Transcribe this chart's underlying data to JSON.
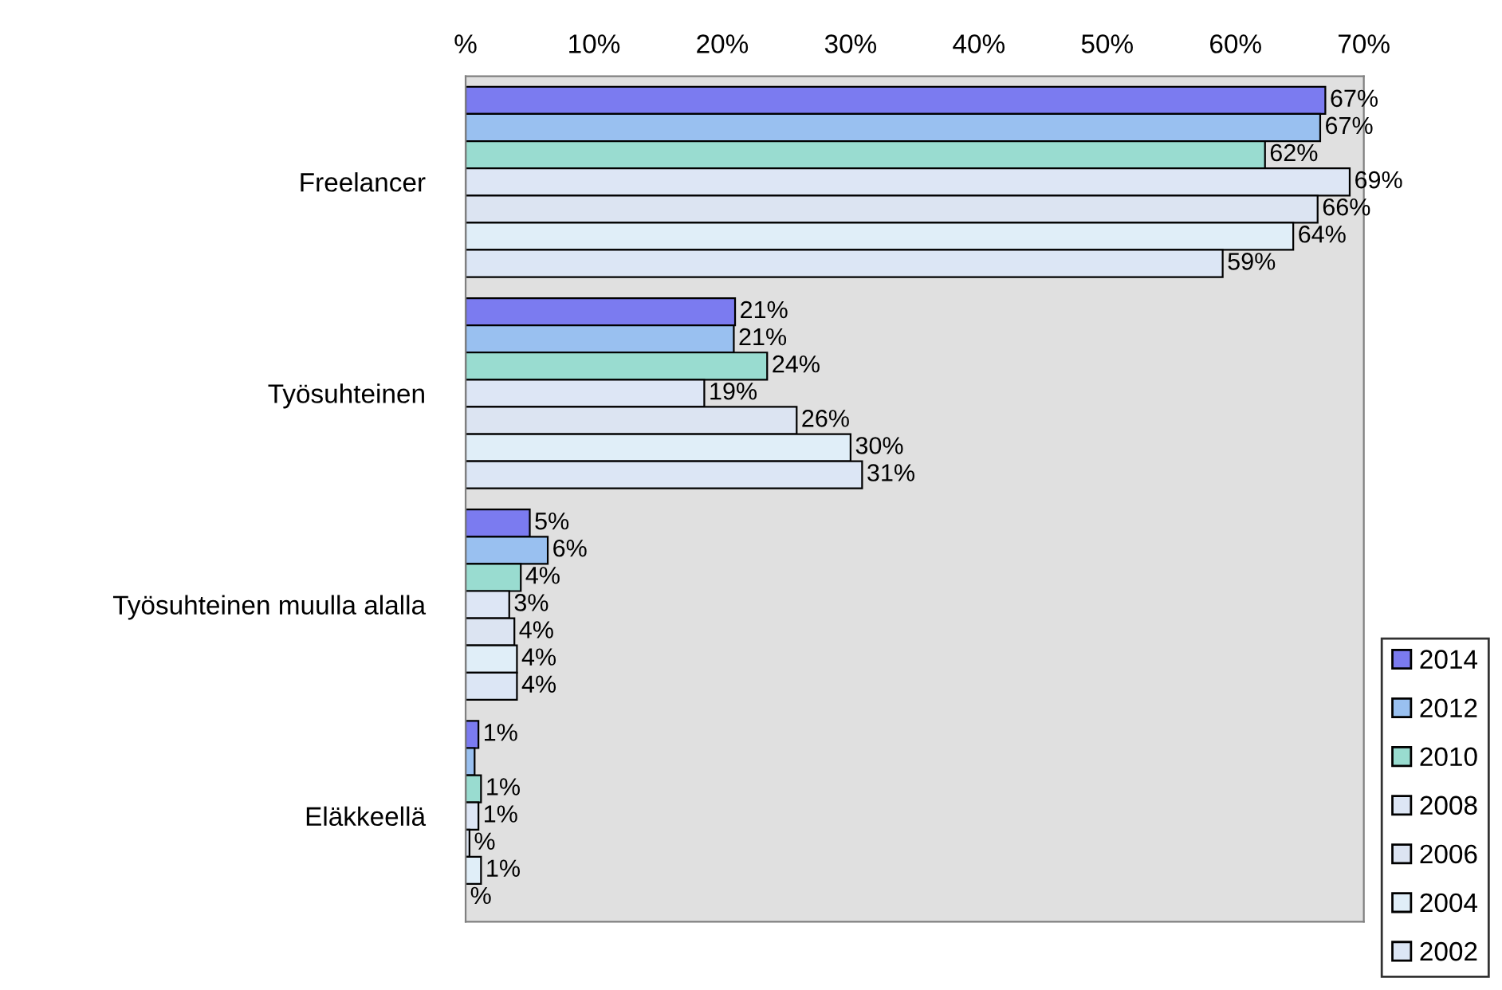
{
  "chart_data": {
    "type": "bar",
    "orientation": "horizontal",
    "categories": [
      "Freelancer",
      "Työsuhteinen",
      "Työsuhteinen muulla alalla",
      "Eläkkeellä"
    ],
    "series": [
      {
        "name": "2014",
        "color": "#7b7bf0",
        "values": [
          67.0,
          21.0,
          5.0,
          1.0
        ],
        "value_labels": [
          "67%",
          "21%",
          "5%",
          "1%"
        ]
      },
      {
        "name": "2012",
        "color": "#99c0f0",
        "values": [
          66.6,
          20.9,
          6.4,
          0.7
        ],
        "value_labels": [
          "67%",
          "21%",
          "6%",
          null
        ]
      },
      {
        "name": "2010",
        "color": "#99dcd0",
        "values": [
          62.3,
          23.5,
          4.3,
          1.2
        ],
        "value_labels": [
          "62%",
          "24%",
          "4%",
          "1%"
        ]
      },
      {
        "name": "2008",
        "color": "#dde6f5",
        "values": [
          68.9,
          18.6,
          3.4,
          1.0
        ],
        "value_labels": [
          "69%",
          "19%",
          "3%",
          "1%"
        ]
      },
      {
        "name": "2006",
        "color": "#dce4f2",
        "values": [
          66.4,
          25.8,
          3.8,
          0.3
        ],
        "value_labels": [
          "66%",
          "26%",
          "4%",
          "%"
        ]
      },
      {
        "name": "2004",
        "color": "#e0eef8",
        "values": [
          64.5,
          30.0,
          4.0,
          1.2
        ],
        "value_labels": [
          "64%",
          "30%",
          "4%",
          "1%"
        ]
      },
      {
        "name": "2002",
        "color": "#dce6f5",
        "values": [
          59.0,
          30.9,
          4.0,
          null
        ],
        "value_labels": [
          "59%",
          "31%",
          "4%",
          "%"
        ]
      }
    ],
    "xlim": [
      0,
      70
    ],
    "xticks": [
      {
        "value": 0,
        "label": "%"
      },
      {
        "value": 10,
        "label": "10%"
      },
      {
        "value": 20,
        "label": "20%"
      },
      {
        "value": 30,
        "label": "30%"
      },
      {
        "value": 40,
        "label": "40%"
      },
      {
        "value": 50,
        "label": "50%"
      },
      {
        "value": 60,
        "label": "60%"
      },
      {
        "value": 70,
        "label": "70%"
      }
    ],
    "grid": false,
    "legend": "bottom right"
  }
}
